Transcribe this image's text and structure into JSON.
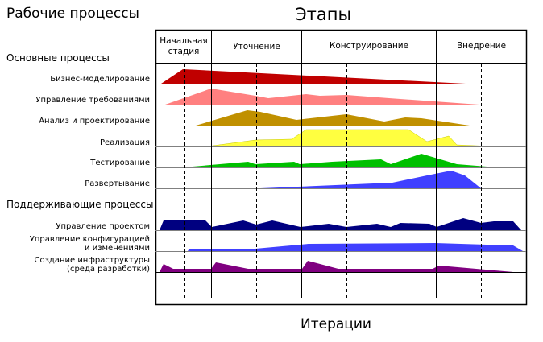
{
  "left_title": "Рабочие процессы",
  "top_title": "Этапы",
  "bottom_title": "Итерации",
  "phases": [
    "Начальная стадия",
    "Уточнение",
    "Конструирование",
    "Внедрение"
  ],
  "core_section": "Основные процессы",
  "core_processes": [
    {
      "label": "Бизнес-моделирование",
      "color": "#c00000"
    },
    {
      "label": "Управление требованиями",
      "color": "#ff8080"
    },
    {
      "label": "Анализ и проектирование",
      "color": "#c09000"
    },
    {
      "label": "Реализация",
      "color": "#ffff40"
    },
    {
      "label": "Тестирование",
      "color": "#00c000"
    },
    {
      "label": "Развертывание",
      "color": "#4040ff"
    }
  ],
  "support_section": "Поддерживающие процессы",
  "support_processes": [
    {
      "label": "Управление проектом",
      "color": "#000080"
    },
    {
      "label_line1": "Управление конфигурацией",
      "label_line2": "и изменениями",
      "color": "#4040ff"
    },
    {
      "label_line1": "Создание инфраструктуры",
      "label_line2": "(среда разработки)",
      "color": "#800080"
    }
  ]
}
